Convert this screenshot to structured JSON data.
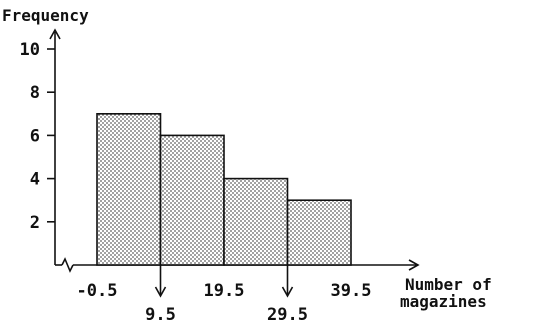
{
  "chart_data": {
    "type": "bar",
    "subtype": "histogram",
    "bin_edges": [
      -0.5,
      9.5,
      19.5,
      29.5,
      39.5
    ],
    "frequencies": [
      7,
      6,
      4,
      3
    ],
    "ylabel": "Frequency",
    "xlabel_lines": [
      "Number of",
      "magazines"
    ],
    "ylim": [
      0,
      10
    ],
    "y_ticks": [
      2,
      4,
      6,
      8,
      10
    ],
    "x_tick_labels": [
      "-0.5",
      "9.5",
      "19.5",
      "29.5",
      "39.5"
    ],
    "x_axis_break": true,
    "bar_fill": "dotted",
    "grid": false,
    "colors": {
      "ink": "#111111",
      "bar_dots": "#555555"
    }
  }
}
